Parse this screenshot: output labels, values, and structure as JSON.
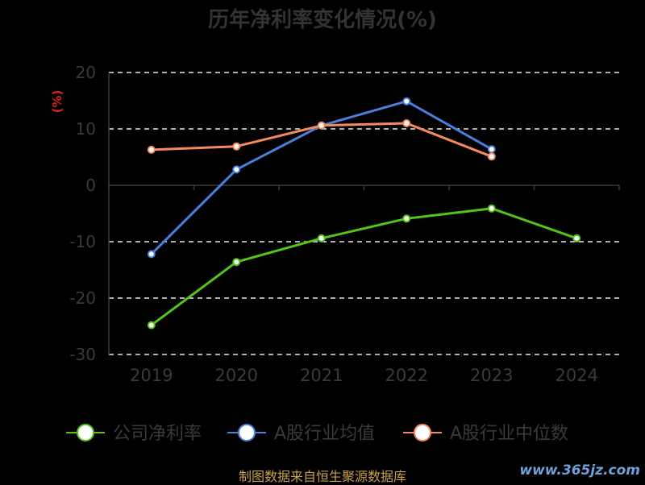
{
  "chart_data": {
    "type": "line",
    "title": "历年净利率变化情况(%)",
    "ylabel": "(%)",
    "xlabel": "",
    "categories": [
      "2019",
      "2020",
      "2021",
      "2022",
      "2023",
      "2024"
    ],
    "ylim": [
      -30,
      20
    ],
    "yticks": [
      20,
      10,
      0,
      -10,
      -20,
      -30
    ],
    "grid": "horizontal-dashed",
    "legend_position": "bottom",
    "series": [
      {
        "name": "公司净利率",
        "color": "#52c41a",
        "values": [
          -24.8,
          -13.6,
          -9.4,
          -5.9,
          -4.1,
          -9.4
        ]
      },
      {
        "name": "A股行业均值",
        "color": "#4a7fdc",
        "values": [
          -12.2,
          2.8,
          10.6,
          14.9,
          6.4,
          null
        ]
      },
      {
        "name": "A股行业中位数",
        "color": "#f5895f",
        "values": [
          6.3,
          6.9,
          10.6,
          11.0,
          5.1,
          null
        ]
      }
    ]
  },
  "footer": {
    "source": "制图数据来自恒生聚源数据库",
    "watermark": "www.365jz.com"
  }
}
